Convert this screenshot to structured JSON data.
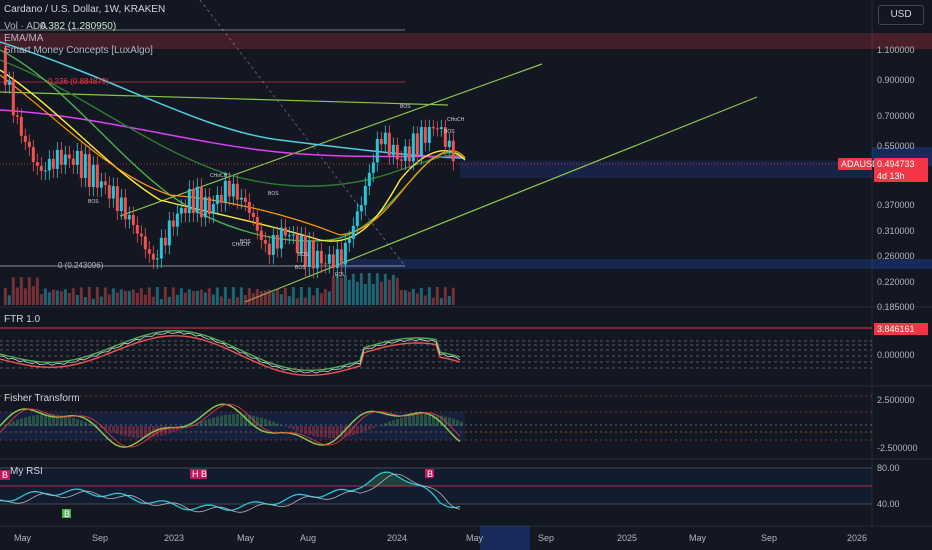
{
  "header": {
    "title": "Cardano / U.S. Dollar, 1W, KRAKEN",
    "vol_label": "Vol · ADA",
    "ema_label": "EMA/MA",
    "smc_label": "Smart Money Concepts [LuxAlgo]",
    "fib_top": "0.382 (1.280950)",
    "fib_mid": "0.236 (0.884879)",
    "fib_low": "0 (0.243096)",
    "currency_button": "USD"
  },
  "price_pane": {
    "symbol_tag": "ADAUSD",
    "last_price": "0.494733",
    "countdown": "4d 13h",
    "y_ticks": [
      "1.100000",
      "0.900000",
      "0.700000",
      "0.550000",
      "0.370000",
      "0.310000",
      "0.260000",
      "0.220000",
      "0.185000"
    ],
    "annotations": [
      "BOS",
      "CHoCH",
      "BOS",
      "BOS",
      "CHoCH",
      "BOS",
      "BOS",
      "EQL",
      "BOS",
      "CHoCH",
      "BOS"
    ]
  },
  "ftr_pane": {
    "label": "FTR 1.0",
    "level_tag": "3.846161",
    "y_tick": "0.000000"
  },
  "fisher_pane": {
    "label": "Fisher Transform",
    "y_ticks": [
      "2.500000",
      "-2.500000"
    ]
  },
  "rsi_pane": {
    "label": "My RSI",
    "y_ticks": [
      "80.00",
      "40.00"
    ],
    "markers": [
      "B",
      "H B",
      "B",
      "B"
    ]
  },
  "time_axis": [
    "May",
    "Sep",
    "2023",
    "May",
    "Aug",
    "2024",
    "May",
    "Sep",
    "2025",
    "May",
    "Sep",
    "2026"
  ],
  "colors": {
    "background": "#131722",
    "up": "#26c6da",
    "down": "#ef5350",
    "accent_red": "#f23645",
    "ema_cyan": "#4dd0e1",
    "ema_magenta": "#e040fb",
    "ema_green": "#4caf50",
    "ema_yellow": "#ffeb3b",
    "ema_orange": "#ff9800",
    "trend_green": "#8bc34a"
  },
  "chart_data": {
    "type": "candlestick",
    "title": "Cardano / U.S. Dollar, 1W, KRAKEN",
    "xlabel": "",
    "ylabel": "",
    "x": [
      "2022-05",
      "2022-09",
      "2023-01",
      "2023-05",
      "2023-08",
      "2024-01",
      "2024-05",
      "2024-09",
      "2025-01",
      "2025-05",
      "2025-09",
      "2026-01"
    ],
    "close_path": [
      {
        "date": "2022-04",
        "close": 1.05
      },
      {
        "date": "2022-05",
        "close": 0.62
      },
      {
        "date": "2022-06",
        "close": 0.46
      },
      {
        "date": "2022-07",
        "close": 0.51
      },
      {
        "date": "2022-08",
        "close": 0.5
      },
      {
        "date": "2022-09",
        "close": 0.44
      },
      {
        "date": "2022-10",
        "close": 0.39
      },
      {
        "date": "2022-11",
        "close": 0.32
      },
      {
        "date": "2022-12",
        "close": 0.25
      },
      {
        "date": "2023-01",
        "close": 0.33
      },
      {
        "date": "2023-02",
        "close": 0.39
      },
      {
        "date": "2023-03",
        "close": 0.36
      },
      {
        "date": "2023-04",
        "close": 0.42
      },
      {
        "date": "2023-05",
        "close": 0.37
      },
      {
        "date": "2023-06",
        "close": 0.27
      },
      {
        "date": "2023-07",
        "close": 0.31
      },
      {
        "date": "2023-08",
        "close": 0.27
      },
      {
        "date": "2023-09",
        "close": 0.25
      },
      {
        "date": "2023-10",
        "close": 0.26
      },
      {
        "date": "2023-11",
        "close": 0.38
      },
      {
        "date": "2023-12",
        "close": 0.6
      },
      {
        "date": "2024-01",
        "close": 0.5
      },
      {
        "date": "2024-02",
        "close": 0.58
      },
      {
        "date": "2024-03",
        "close": 0.65
      },
      {
        "date": "2024-04",
        "close": 0.4947
      }
    ],
    "y_ticks": [
      1.1,
      0.9,
      0.7,
      0.55,
      0.37,
      0.31,
      0.26,
      0.22,
      0.185
    ],
    "last_price": 0.494733,
    "log_scale": true,
    "indicators": [
      "Vol · ADA",
      "EMA/MA",
      "Smart Money Concepts [LuxAlgo]",
      "FTR 1.0",
      "Fisher Transform",
      "My RSI"
    ],
    "rsi_levels": [
      80,
      40
    ],
    "fisher_levels": [
      2.5,
      -2.5
    ],
    "grid": false,
    "legend": "top-left"
  }
}
